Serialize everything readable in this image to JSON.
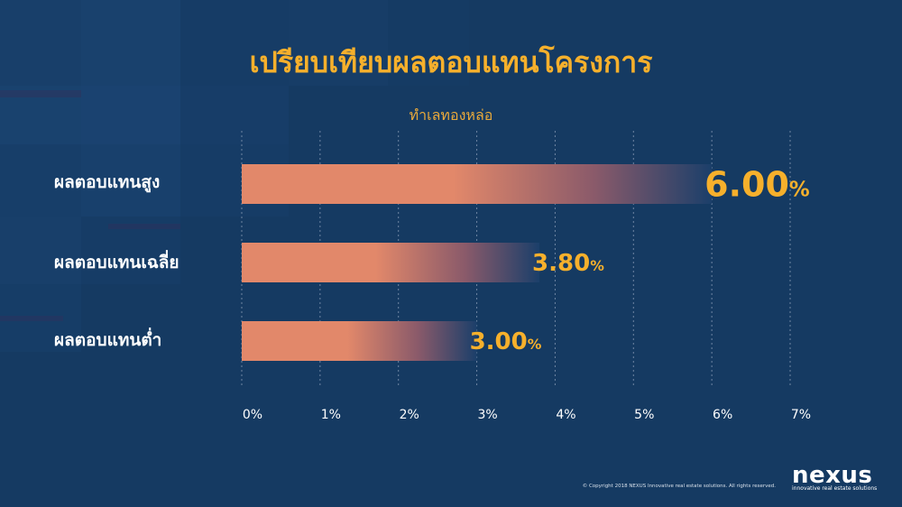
{
  "colors": {
    "background": "#153a62",
    "title": "#f6b02c",
    "bar_start": "#e2886a",
    "bar_end": "#1b3f6a",
    "value_label": "#f6b02c",
    "grid": "#6f86a3"
  },
  "chart_data": {
    "type": "bar",
    "orientation": "horizontal",
    "title": "เปรียบเทียบผลตอบแทนโครงการ",
    "subtitle": "ทำเลทองหล่อ",
    "categories": [
      "ผลตอบแทนสูง",
      "ผลตอบแทนเฉลี่ย",
      "ผลตอบแทนต่ำ"
    ],
    "values": [
      6.0,
      3.8,
      3.0
    ],
    "value_labels": [
      "6.00%",
      "3.80%",
      "3.00%"
    ],
    "xlim": [
      0,
      7
    ],
    "x_ticks": [
      "0%",
      "1%",
      "2%",
      "3%",
      "4%",
      "5%",
      "6%",
      "7%"
    ],
    "grid": true,
    "grid_style": "dashed-vertical",
    "legend": "none"
  },
  "footer": {
    "copyright": "© Copyright 2018 NEXUS Innovative real estate solutions. All rights reserved.",
    "logo_word": "nexus",
    "logo_tagline": "innovative real estate solutions"
  }
}
